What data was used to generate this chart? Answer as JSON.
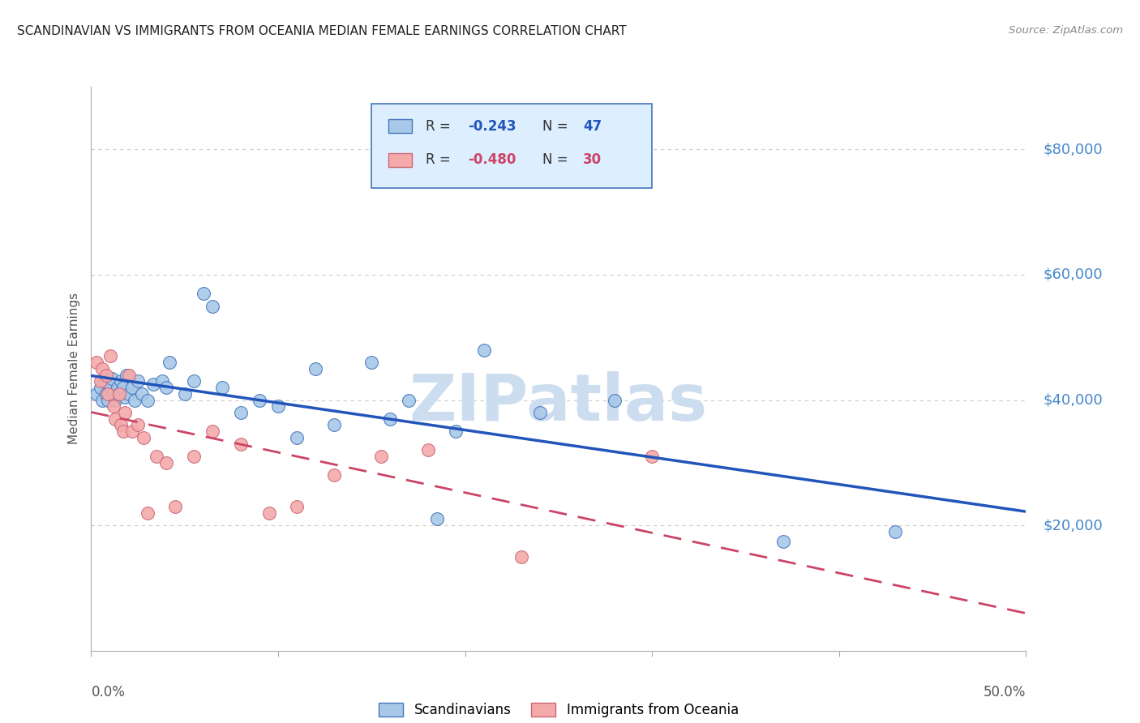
{
  "title": "SCANDINAVIAN VS IMMIGRANTS FROM OCEANIA MEDIAN FEMALE EARNINGS CORRELATION CHART",
  "source": "Source: ZipAtlas.com",
  "ylabel": "Median Female Earnings",
  "yticks": [
    0,
    20000,
    40000,
    60000,
    80000
  ],
  "ytick_labels": [
    "",
    "$20,000",
    "$40,000",
    "$60,000",
    "$80,000"
  ],
  "xmin": 0.0,
  "xmax": 0.5,
  "ymin": 0,
  "ymax": 90000,
  "scandinavians": {
    "R": -0.243,
    "N": 47,
    "color": "#a8c8e8",
    "edge_color": "#4477bb",
    "line_color": "#2255bb",
    "x": [
      0.003,
      0.005,
      0.006,
      0.007,
      0.008,
      0.009,
      0.01,
      0.011,
      0.012,
      0.013,
      0.014,
      0.015,
      0.016,
      0.017,
      0.018,
      0.019,
      0.02,
      0.022,
      0.023,
      0.025,
      0.027,
      0.03,
      0.033,
      0.038,
      0.04,
      0.042,
      0.05,
      0.055,
      0.06,
      0.065,
      0.07,
      0.08,
      0.09,
      0.1,
      0.11,
      0.12,
      0.13,
      0.15,
      0.16,
      0.17,
      0.185,
      0.195,
      0.21,
      0.24,
      0.28,
      0.37,
      0.43
    ],
    "y": [
      41000,
      42000,
      40000,
      43000,
      41000,
      40000,
      42000,
      43500,
      41000,
      40000,
      42000,
      41000,
      43000,
      42000,
      40500,
      44000,
      41000,
      42000,
      40000,
      43000,
      41000,
      40000,
      42500,
      43000,
      42000,
      46000,
      41000,
      43000,
      57000,
      55000,
      42000,
      38000,
      40000,
      39000,
      34000,
      45000,
      36000,
      46000,
      37000,
      40000,
      21000,
      35000,
      48000,
      38000,
      40000,
      17500,
      19000
    ]
  },
  "oceania": {
    "R": -0.48,
    "N": 30,
    "color": "#f4aaaa",
    "edge_color": "#cc6677",
    "line_color": "#cc4466",
    "x": [
      0.003,
      0.005,
      0.006,
      0.008,
      0.009,
      0.01,
      0.012,
      0.013,
      0.015,
      0.016,
      0.017,
      0.018,
      0.02,
      0.022,
      0.025,
      0.028,
      0.03,
      0.035,
      0.04,
      0.045,
      0.055,
      0.065,
      0.08,
      0.095,
      0.11,
      0.13,
      0.155,
      0.18,
      0.23,
      0.3
    ],
    "y": [
      46000,
      43000,
      45000,
      44000,
      41000,
      47000,
      39000,
      37000,
      41000,
      36000,
      35000,
      38000,
      44000,
      35000,
      36000,
      34000,
      22000,
      31000,
      30000,
      23000,
      31000,
      35000,
      33000,
      22000,
      23000,
      28000,
      31000,
      32000,
      15000,
      31000
    ]
  },
  "watermark": "ZIPatlas",
  "watermark_color": "#ccddf0",
  "legend_box_facecolor": "#ddeeff",
  "legend_box_edgecolor": "#4477bb",
  "background_color": "#ffffff",
  "grid_color": "#cccccc",
  "title_color": "#222222",
  "source_color": "#888888",
  "axis_label_color": "#555555",
  "right_tick_color": "#4488cc"
}
